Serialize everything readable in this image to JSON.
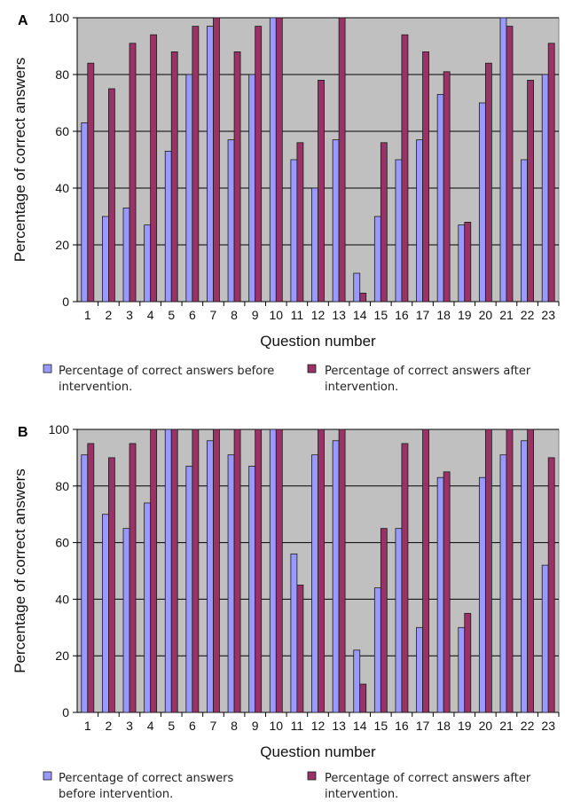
{
  "chart_data": [
    {
      "type": "bar",
      "panel_label": "A",
      "categories": [
        "1",
        "2",
        "3",
        "4",
        "5",
        "6",
        "7",
        "8",
        "9",
        "10",
        "11",
        "12",
        "13",
        "14",
        "15",
        "16",
        "17",
        "18",
        "19",
        "20",
        "21",
        "22",
        "23"
      ],
      "series": [
        {
          "name": "Percentage of correct answers before intervention.",
          "color": "#9999ff",
          "values": [
            63,
            30,
            33,
            27,
            53,
            80,
            97,
            57,
            80,
            100,
            50,
            40,
            57,
            10,
            30,
            50,
            57,
            73,
            27,
            70,
            100,
            50,
            80
          ]
        },
        {
          "name": "Percentage of correct answers after intervention.",
          "color": "#993366",
          "values": [
            84,
            75,
            91,
            94,
            88,
            97,
            100,
            88,
            97,
            100,
            56,
            78,
            100,
            3,
            56,
            94,
            88,
            81,
            28,
            84,
            97,
            78,
            91
          ]
        }
      ],
      "xlabel": "Question number",
      "ylabel": "Percentage of correct answers",
      "ylim": [
        0,
        100
      ],
      "yticks": [
        "0",
        "20",
        "40",
        "60",
        "80",
        "100"
      ],
      "grid": true,
      "legend_position": "bottom",
      "legend_lines": [
        [
          "Percentage of correct answers before",
          "intervention."
        ],
        [
          "Percentage of correct answers after",
          "intervention."
        ]
      ]
    },
    {
      "type": "bar",
      "panel_label": "B",
      "categories": [
        "1",
        "2",
        "3",
        "4",
        "5",
        "6",
        "7",
        "8",
        "9",
        "10",
        "11",
        "12",
        "13",
        "14",
        "15",
        "16",
        "17",
        "18",
        "19",
        "20",
        "21",
        "22",
        "23"
      ],
      "series": [
        {
          "name": "Percentage of correct answers before intervention.",
          "color": "#9999ff",
          "values": [
            91,
            70,
            65,
            74,
            100,
            87,
            96,
            91,
            87,
            100,
            56,
            91,
            96,
            22,
            44,
            65,
            30,
            83,
            30,
            83,
            91,
            96,
            52
          ]
        },
        {
          "name": "Percentage of correct answers after intervention.",
          "color": "#993366",
          "values": [
            95,
            90,
            95,
            100,
            100,
            100,
            100,
            100,
            100,
            100,
            45,
            100,
            100,
            10,
            65,
            95,
            100,
            85,
            35,
            100,
            100,
            100,
            90
          ]
        }
      ],
      "xlabel": "Question number",
      "ylabel": "Percentage of correct answers",
      "ylim": [
        0,
        100
      ],
      "yticks": [
        "0",
        "20",
        "40",
        "60",
        "80",
        "100"
      ],
      "grid": true,
      "legend_position": "bottom",
      "legend_lines": [
        [
          "Percentage of correct answers",
          "before intervention."
        ],
        [
          "Percentage of correct answers after",
          "intervention."
        ]
      ]
    }
  ]
}
